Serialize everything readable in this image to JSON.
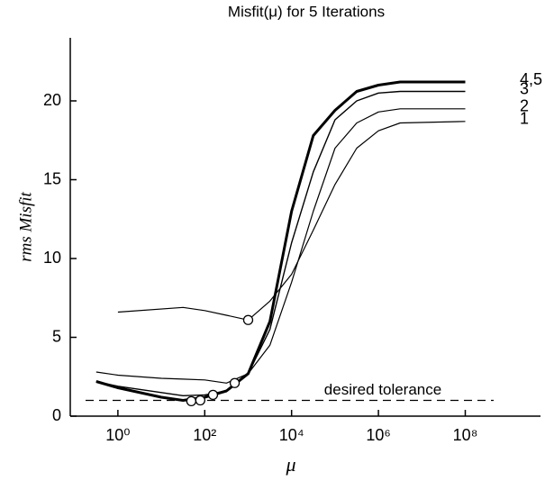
{
  "chart_data": {
    "type": "line",
    "title": "Misfit(μ) for 5 Iterations",
    "x_label": "μ",
    "y_label": "rms Misfit",
    "xscale": "log",
    "xlim": [
      0.08,
      5400000000
    ],
    "xticks": [
      {
        "value": 1,
        "label": "10⁰"
      },
      {
        "value": 100,
        "label": "10²"
      },
      {
        "value": 10000,
        "label": "10⁴"
      },
      {
        "value": 1000000,
        "label": "10⁶"
      },
      {
        "value": 100000000,
        "label": "10⁸"
      }
    ],
    "ylim": [
      0,
      24
    ],
    "yticks": [
      0,
      5,
      10,
      15,
      20
    ],
    "color": "#000000",
    "series": [
      {
        "name": "1",
        "width": 1.2,
        "x": [
          1,
          31.6,
          100,
          316,
          1000,
          3162,
          10000,
          31623,
          100000,
          316228,
          1000000,
          3162278,
          100000000
        ],
        "values": [
          6.6,
          6.9,
          6.7,
          6.4,
          6.1,
          7.3,
          9,
          11.8,
          14.7,
          17,
          18.1,
          18.6,
          18.7
        ]
      },
      {
        "name": "2",
        "width": 1.2,
        "x": [
          0.316,
          1,
          10,
          31.6,
          100,
          316,
          1000,
          3162,
          10000,
          31623,
          100000,
          316228,
          1000000,
          3162278,
          100000000
        ],
        "values": [
          2.8,
          2.6,
          2.4,
          2.35,
          2.3,
          2.1,
          2.7,
          4.5,
          8.5,
          13,
          17,
          18.6,
          19.3,
          19.5,
          19.5
        ]
      },
      {
        "name": "3",
        "width": 1.4,
        "x": [
          0.316,
          1,
          10,
          31.6,
          100,
          316,
          1000,
          3162,
          10000,
          31623,
          100000,
          316228,
          1000000,
          3162278,
          100000000
        ],
        "values": [
          2.2,
          1.9,
          1.5,
          1.3,
          1.35,
          1.6,
          2.7,
          5.5,
          11,
          15.5,
          18.8,
          20,
          20.5,
          20.6,
          20.6
        ]
      },
      {
        "name": "4,5",
        "width": 3,
        "x": [
          0.316,
          1,
          10,
          31.6,
          100,
          316,
          1000,
          3162,
          10000,
          31623,
          100000,
          316228,
          1000000,
          3162278,
          100000000
        ],
        "values": [
          2.2,
          1.8,
          1.2,
          1.0,
          1.2,
          1.6,
          2.7,
          6,
          13,
          17.8,
          19.4,
          20.6,
          21,
          21.2,
          21.2
        ]
      }
    ],
    "markers": {
      "x": [
        49,
        79,
        155,
        490,
        1000
      ],
      "values": [
        0.95,
        1.0,
        1.35,
        2.1,
        6.1
      ]
    },
    "tolerance": {
      "value": 1,
      "label": "desired tolerance"
    }
  }
}
